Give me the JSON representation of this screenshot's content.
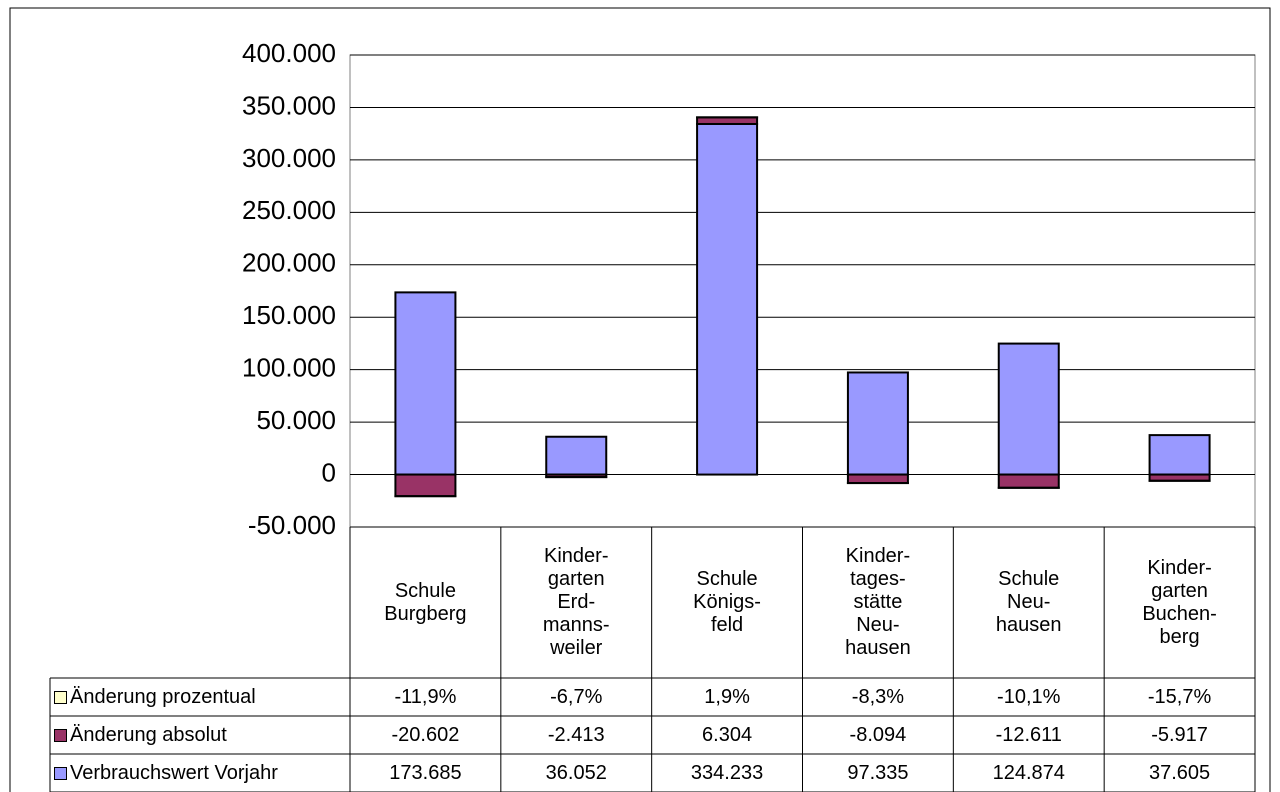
{
  "chart_data": {
    "type": "bar",
    "stacked": true,
    "grid": true,
    "categories": [
      "Schule\nBurgberg",
      "Kinder-\ngarten\nErd-\nmanns-\nweiler",
      "Schule\nKönigs-\nfeld",
      "Kinder-\ntages-\nstätte\nNeu-\nhausen",
      "Schule\nNeu-\nhausen",
      "Kinder-\ngarten\nBuchen-\nberg"
    ],
    "series": [
      {
        "name": "Änderung prozentual",
        "color": "#ffffcc",
        "values": [
          -11.9,
          -6.7,
          1.9,
          -8.3,
          -10.1,
          -15.7
        ],
        "value_labels": [
          "-11,9%",
          "-6,7%",
          "1,9%",
          "-8,3%",
          "-10,1%",
          "-15,7%"
        ]
      },
      {
        "name": "Änderung absolut",
        "color": "#993366",
        "values": [
          -20602,
          -2413,
          6304,
          -8094,
          -12611,
          -5917
        ],
        "value_labels": [
          "-20.602",
          "-2.413",
          "6.304",
          "-8.094",
          "-12.611",
          "-5.917"
        ]
      },
      {
        "name": "Verbrauchswert Vorjahr",
        "color": "#9999ff",
        "values": [
          173685,
          36052,
          334233,
          97335,
          124874,
          37605
        ],
        "value_labels": [
          "173.685",
          "36.052",
          "334.233",
          "97.335",
          "124.874",
          "37.605"
        ]
      }
    ],
    "ylim": [
      -50000,
      400000
    ],
    "yticks": [
      {
        "value": -50000,
        "label": "-50.000"
      },
      0,
      {
        "value": 50000,
        "label": "50.000"
      },
      {
        "value": 100000,
        "label": "100.000"
      },
      {
        "value": 150000,
        "label": "150.000"
      },
      {
        "value": 200000,
        "label": "200.000"
      },
      {
        "value": 250000,
        "label": "250.000"
      },
      {
        "value": 300000,
        "label": "300.000"
      },
      {
        "value": 350000,
        "label": "350.000"
      },
      {
        "value": 400000,
        "label": "400.000"
      }
    ]
  }
}
